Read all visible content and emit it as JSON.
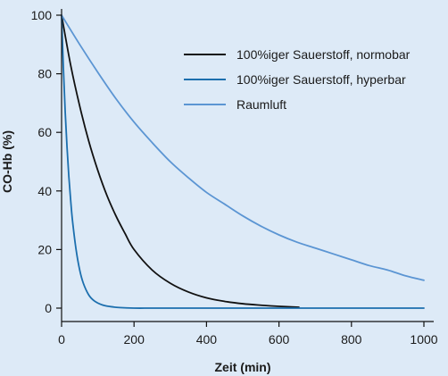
{
  "chart_data": {
    "type": "line",
    "xlabel": "Zeit (min)",
    "ylabel": "CO-Hb (%)",
    "xlim": [
      0,
      1000
    ],
    "ylim": [
      0,
      100
    ],
    "x_ticks": [
      0,
      200,
      400,
      600,
      800,
      1000
    ],
    "y_ticks": [
      0,
      20,
      40,
      60,
      80,
      100
    ],
    "grid": false,
    "legend_position": "top-right",
    "series": [
      {
        "name": "100%iger Sauerstoff, normobar",
        "color": "#111111",
        "x": [
          0,
          25,
          50,
          75,
          100,
          125,
          150,
          175,
          200,
          250,
          300,
          350,
          400,
          450,
          500,
          550,
          600,
          655
        ],
        "y": [
          100,
          83,
          69,
          57,
          47,
          38.5,
          31.5,
          25.5,
          20,
          13,
          8.5,
          5.5,
          3.5,
          2.3,
          1.5,
          1.0,
          0.6,
          0.3
        ]
      },
      {
        "name": "100%iger Sauerstoff, hyperbar",
        "color": "#1c6fae",
        "x": [
          0,
          5,
          10,
          15,
          20,
          25,
          30,
          40,
          50,
          60,
          75,
          90,
          110,
          130,
          160,
          200,
          260,
          400,
          600,
          800,
          1000
        ],
        "y": [
          100,
          82,
          67,
          55,
          45,
          37,
          30,
          20,
          13,
          8.5,
          4.5,
          2.5,
          1.2,
          0.6,
          0.2,
          0,
          0,
          0,
          0,
          0,
          0
        ]
      },
      {
        "name": "Raumluft",
        "color": "#5b95d3",
        "x": [
          0,
          50,
          100,
          150,
          200,
          250,
          300,
          350,
          400,
          450,
          500,
          550,
          600,
          650,
          700,
          750,
          800,
          850,
          900,
          950,
          1000
        ],
        "y": [
          100,
          90,
          80.5,
          71.5,
          63.5,
          56.5,
          50,
          44.5,
          39.5,
          35.5,
          31.5,
          28,
          25,
          22.5,
          20.5,
          18.5,
          16.5,
          14.5,
          13,
          11,
          9.5
        ]
      }
    ]
  }
}
